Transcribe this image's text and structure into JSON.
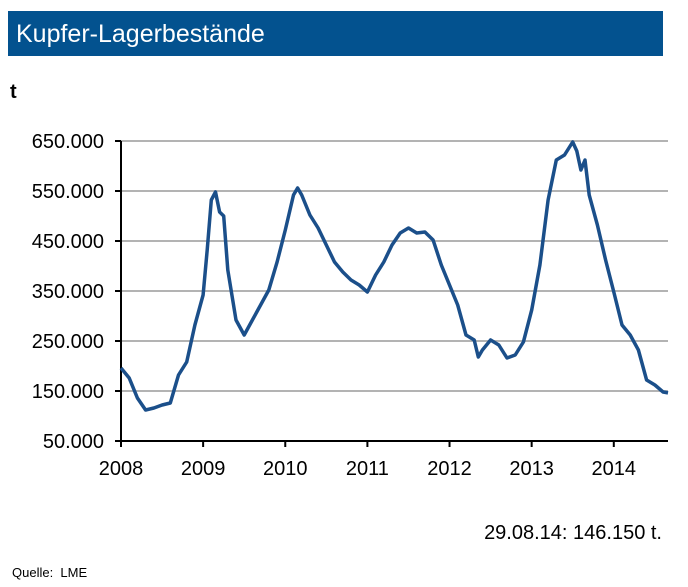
{
  "chart_data": {
    "type": "line",
    "title": "Kupfer-Lagerbestände",
    "ylabel": "t",
    "xlabel": "",
    "ylim": [
      50000,
      650000
    ],
    "xlim": [
      2008,
      2014.66
    ],
    "yticks": [
      50000,
      150000,
      250000,
      350000,
      450000,
      550000,
      650000
    ],
    "ytick_labels": [
      "50.000",
      "150.000",
      "250.000",
      "350.000",
      "450.000",
      "550.000",
      "650.000"
    ],
    "xticks": [
      2008,
      2009,
      2010,
      2011,
      2012,
      2013,
      2014
    ],
    "xtick_labels": [
      "2008",
      "2009",
      "2010",
      "2011",
      "2012",
      "2013",
      "2014"
    ],
    "grid": true,
    "line_color": "#1b4f8a",
    "series": [
      {
        "x": [
          2008.0,
          2008.1,
          2008.2,
          2008.3,
          2008.4,
          2008.5,
          2008.6,
          2008.7,
          2008.8,
          2008.9,
          2009.0,
          2009.05,
          2009.1,
          2009.15,
          2009.2,
          2009.25,
          2009.3,
          2009.4,
          2009.5,
          2009.6,
          2009.7,
          2009.8,
          2009.9,
          2010.0,
          2010.1,
          2010.15,
          2010.2,
          2010.3,
          2010.4,
          2010.5,
          2010.6,
          2010.7,
          2010.8,
          2010.9,
          2011.0,
          2011.1,
          2011.2,
          2011.3,
          2011.4,
          2011.5,
          2011.6,
          2011.7,
          2011.8,
          2011.9,
          2012.0,
          2012.1,
          2012.2,
          2012.3,
          2012.35,
          2012.4,
          2012.5,
          2012.6,
          2012.7,
          2012.8,
          2012.9,
          2013.0,
          2013.1,
          2013.2,
          2013.3,
          2013.4,
          2013.5,
          2013.55,
          2013.6,
          2013.65,
          2013.7,
          2013.8,
          2013.9,
          2014.0,
          2014.1,
          2014.2,
          2014.3,
          2014.4,
          2014.5,
          2014.6,
          2014.66
        ],
        "y": [
          196000,
          176000,
          136000,
          112000,
          116000,
          122000,
          126000,
          182000,
          208000,
          282000,
          342000,
          432000,
          532000,
          548000,
          508000,
          500000,
          392000,
          292000,
          262000,
          292000,
          322000,
          352000,
          408000,
          472000,
          542000,
          556000,
          542000,
          502000,
          476000,
          442000,
          408000,
          388000,
          372000,
          362000,
          348000,
          382000,
          408000,
          442000,
          466000,
          476000,
          466000,
          468000,
          452000,
          402000,
          362000,
          322000,
          262000,
          252000,
          218000,
          232000,
          252000,
          242000,
          216000,
          222000,
          248000,
          312000,
          402000,
          532000,
          612000,
          622000,
          648000,
          630000,
          592000,
          612000,
          542000,
          482000,
          412000,
          348000,
          282000,
          262000,
          232000,
          172000,
          162000,
          148000,
          146150
        ]
      }
    ],
    "annotation": "29.08.14: 146.150 t.",
    "source": "Quelle:  LME"
  },
  "colors": {
    "title_bar": "#03528f",
    "grid": "#b3b3b3"
  }
}
